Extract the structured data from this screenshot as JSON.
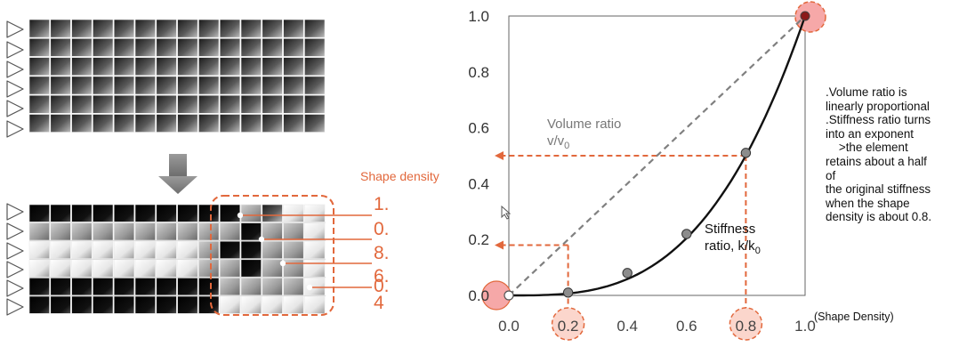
{
  "colors": {
    "accent": "#e2683c",
    "marker_fill": "#f6a8a8",
    "curve": "#111111",
    "diagonal": "#808080"
  },
  "left_panel": {
    "grid_top": {
      "rows": 6,
      "cols": 14
    },
    "grid_bottom": {
      "rows": 6,
      "cols": 14
    },
    "arrow_icon": "down-arrow-icon",
    "support_icon": "triangle-support-icon",
    "shape_density_label": "Shape density",
    "density_values": [
      "1.",
      "0.",
      "8.",
      "6.",
      "0.",
      "4"
    ]
  },
  "chart_data": {
    "type": "line",
    "xlim": [
      0,
      1
    ],
    "ylim": [
      0,
      1
    ],
    "xticks": [
      "0.0",
      "0.2",
      "0.4",
      "0.6",
      "0.8",
      "1.0"
    ],
    "yticks": [
      "0.0",
      "0.2",
      "0.4",
      "0.6",
      "0.8",
      "1.0"
    ],
    "xlabel": "(Shape Density)",
    "ylabel": "",
    "grid": false,
    "series": [
      {
        "name": "Volume ratio v/v0",
        "style": "dashed",
        "x": [
          0,
          1
        ],
        "y": [
          0,
          1
        ]
      },
      {
        "name": "Stiffness ratio, k/k0",
        "style": "solid",
        "x": [
          0.0,
          0.1,
          0.2,
          0.3,
          0.4,
          0.5,
          0.6,
          0.7,
          0.8,
          0.9,
          1.0
        ],
        "y": [
          0.0,
          0.0,
          0.01,
          0.03,
          0.08,
          0.14,
          0.22,
          0.34,
          0.51,
          0.73,
          1.0
        ]
      }
    ],
    "points": [
      {
        "x": 0.0,
        "y": 0.0
      },
      {
        "x": 0.2,
        "y": 0.01
      },
      {
        "x": 0.4,
        "y": 0.08
      },
      {
        "x": 0.6,
        "y": 0.22
      },
      {
        "x": 0.8,
        "y": 0.51
      },
      {
        "x": 1.0,
        "y": 1.0
      }
    ],
    "guides": [
      {
        "x": 0.8,
        "y": 0.5
      },
      {
        "x": 0.2,
        "y": 0.18
      }
    ],
    "highlighted_ticks": [
      "0.0",
      "0.2",
      "0.8",
      "1.0"
    ],
    "annotations": {
      "volume_label_1": "Volume ratio",
      "volume_label_2": "v/v",
      "volume_sub": "0",
      "stiffness_label_1": "Stiffness",
      "stiffness_label_2": "ratio, k/k",
      "stiffness_sub": "0"
    }
  },
  "note": {
    "lines": [
      ".Volume ratio is",
      "linearly proportional",
      ".Stiffness ratio turns",
      "into an exponent",
      "  >the element",
      "retains about a half",
      "of",
      "the original stiffness",
      "when the shape",
      "density is about 0.8."
    ]
  }
}
